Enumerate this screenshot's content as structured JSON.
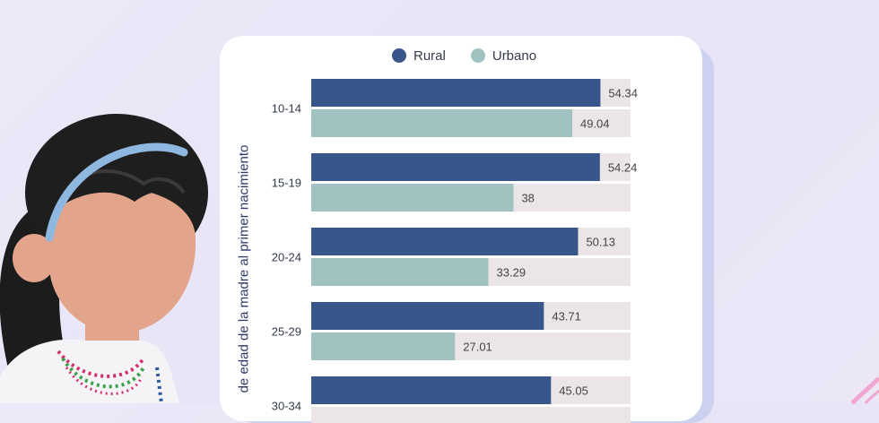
{
  "chart_data": {
    "type": "bar",
    "orientation": "horizontal",
    "ylabel": "de edad de la madre al primer nacimiento",
    "categories": [
      "10-14",
      "15-19",
      "20-24",
      "25-29",
      "30-34"
    ],
    "series": [
      {
        "name": "Rural",
        "values": [
          54.34,
          54.24,
          50.13,
          43.71,
          45.05
        ],
        "color": "#38568a"
      },
      {
        "name": "Urbano",
        "values": [
          49.04,
          38,
          33.29,
          27.01,
          null
        ],
        "color": "#a0c2c1"
      }
    ],
    "track_color": "#ebe5e8",
    "xlim": [
      0,
      60
    ],
    "grid": false,
    "legend_position": "top"
  }
}
